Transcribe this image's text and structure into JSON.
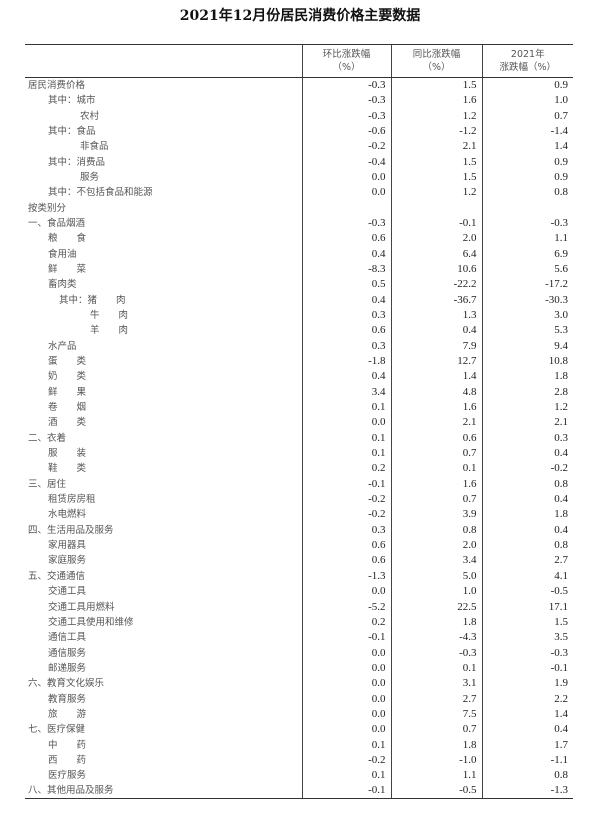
{
  "title": "2021年12月份居民消费价格主要数据",
  "headers": [
    "",
    "环比涨跌幅\n（%）",
    "同比涨跌幅\n（%）",
    "2021年\n涨跌幅（%）"
  ],
  "rows": [
    {
      "label": "居民消费价格",
      "mom": "-0.3",
      "yoy": "1.5",
      "ytd": "0.9"
    },
    {
      "label": "其中：城市",
      "mom": "-0.3",
      "yoy": "1.6",
      "ytd": "1.0"
    },
    {
      "label": "农村",
      "mom": "-0.3",
      "yoy": "1.2",
      "ytd": "0.7"
    },
    {
      "label": "其中：食品",
      "mom": "-0.6",
      "yoy": "-1.2",
      "ytd": "-1.4"
    },
    {
      "label": "非食品",
      "mom": "-0.2",
      "yoy": "2.1",
      "ytd": "1.4"
    },
    {
      "label": "其中：消费品",
      "mom": "-0.4",
      "yoy": "1.5",
      "ytd": "0.9"
    },
    {
      "label": "服务",
      "mom": "0.0",
      "yoy": "1.5",
      "ytd": "0.9"
    },
    {
      "label": "其中：不包括食品和能源",
      "mom": "0.0",
      "yoy": "1.2",
      "ytd": "0.8"
    },
    {
      "label": "按类别分",
      "mom": "",
      "yoy": "",
      "ytd": ""
    },
    {
      "label": "一、食品烟酒",
      "mom": "-0.3",
      "yoy": "-0.1",
      "ytd": "-0.3"
    },
    {
      "label": "粮　　食",
      "mom": "0.6",
      "yoy": "2.0",
      "ytd": "1.1"
    },
    {
      "label": "食用油",
      "mom": "0.4",
      "yoy": "6.4",
      "ytd": "6.9"
    },
    {
      "label": "鲜　　菜",
      "mom": "-8.3",
      "yoy": "10.6",
      "ytd": "5.6"
    },
    {
      "label": "畜肉类",
      "mom": "0.5",
      "yoy": "-22.2",
      "ytd": "-17.2"
    },
    {
      "label": "其中：猪　　肉",
      "mom": "0.4",
      "yoy": "-36.7",
      "ytd": "-30.3"
    },
    {
      "label": "牛　　肉",
      "mom": "0.3",
      "yoy": "1.3",
      "ytd": "3.0"
    },
    {
      "label": "羊　　肉",
      "mom": "0.6",
      "yoy": "0.4",
      "ytd": "5.3"
    },
    {
      "label": "水产品",
      "mom": "0.3",
      "yoy": "7.9",
      "ytd": "9.4"
    },
    {
      "label": "蛋　　类",
      "mom": "-1.8",
      "yoy": "12.7",
      "ytd": "10.8"
    },
    {
      "label": "奶　　类",
      "mom": "0.4",
      "yoy": "1.4",
      "ytd": "1.8"
    },
    {
      "label": "鲜　　果",
      "mom": "3.4",
      "yoy": "4.8",
      "ytd": "2.8"
    },
    {
      "label": "卷　　烟",
      "mom": "0.1",
      "yoy": "1.6",
      "ytd": "1.2"
    },
    {
      "label": "酒　　类",
      "mom": "0.0",
      "yoy": "2.1",
      "ytd": "2.1"
    },
    {
      "label": "二、衣着",
      "mom": "0.1",
      "yoy": "0.6",
      "ytd": "0.3"
    },
    {
      "label": "服　　装",
      "mom": "0.1",
      "yoy": "0.7",
      "ytd": "0.4"
    },
    {
      "label": "鞋　　类",
      "mom": "0.2",
      "yoy": "0.1",
      "ytd": "-0.2"
    },
    {
      "label": "三、居住",
      "mom": "-0.1",
      "yoy": "1.6",
      "ytd": "0.8"
    },
    {
      "label": "租赁房房租",
      "mom": "-0.2",
      "yoy": "0.7",
      "ytd": "0.4"
    },
    {
      "label": "水电燃料",
      "mom": "-0.2",
      "yoy": "3.9",
      "ytd": "1.8"
    },
    {
      "label": "四、生活用品及服务",
      "mom": "0.3",
      "yoy": "0.8",
      "ytd": "0.4"
    },
    {
      "label": "家用器具",
      "mom": "0.6",
      "yoy": "2.0",
      "ytd": "0.8"
    },
    {
      "label": "家庭服务",
      "mom": "0.6",
      "yoy": "3.4",
      "ytd": "2.7"
    },
    {
      "label": "五、交通通信",
      "mom": "-1.3",
      "yoy": "5.0",
      "ytd": "4.1"
    },
    {
      "label": "交通工具",
      "mom": "0.0",
      "yoy": "1.0",
      "ytd": "-0.5"
    },
    {
      "label": "交通工具用燃料",
      "mom": "-5.2",
      "yoy": "22.5",
      "ytd": "17.1"
    },
    {
      "label": "交通工具使用和维修",
      "mom": "0.2",
      "yoy": "1.8",
      "ytd": "1.5"
    },
    {
      "label": "通信工具",
      "mom": "-0.1",
      "yoy": "-4.3",
      "ytd": "3.5"
    },
    {
      "label": "通信服务",
      "mom": "0.0",
      "yoy": "-0.3",
      "ytd": "-0.3"
    },
    {
      "label": "邮递服务",
      "mom": "0.0",
      "yoy": "0.1",
      "ytd": "-0.1"
    },
    {
      "label": "六、教育文化娱乐",
      "mom": "0.0",
      "yoy": "3.1",
      "ytd": "1.9"
    },
    {
      "label": "教育服务",
      "mom": "0.0",
      "yoy": "2.7",
      "ytd": "2.2"
    },
    {
      "label": "旅　　游",
      "mom": "0.0",
      "yoy": "7.5",
      "ytd": "1.4"
    },
    {
      "label": "七、医疗保健",
      "mom": "0.0",
      "yoy": "0.7",
      "ytd": "0.4"
    },
    {
      "label": "中　　药",
      "mom": "0.1",
      "yoy": "1.8",
      "ytd": "1.7"
    },
    {
      "label": "西　　药",
      "mom": "-0.2",
      "yoy": "-1.0",
      "ytd": "-1.1"
    },
    {
      "label": "医疗服务",
      "mom": "0.1",
      "yoy": "1.1",
      "ytd": "0.8"
    },
    {
      "label": "八、其他用品及服务",
      "mom": "-0.1",
      "yoy": "-0.5",
      "ytd": "-1.3"
    }
  ]
}
